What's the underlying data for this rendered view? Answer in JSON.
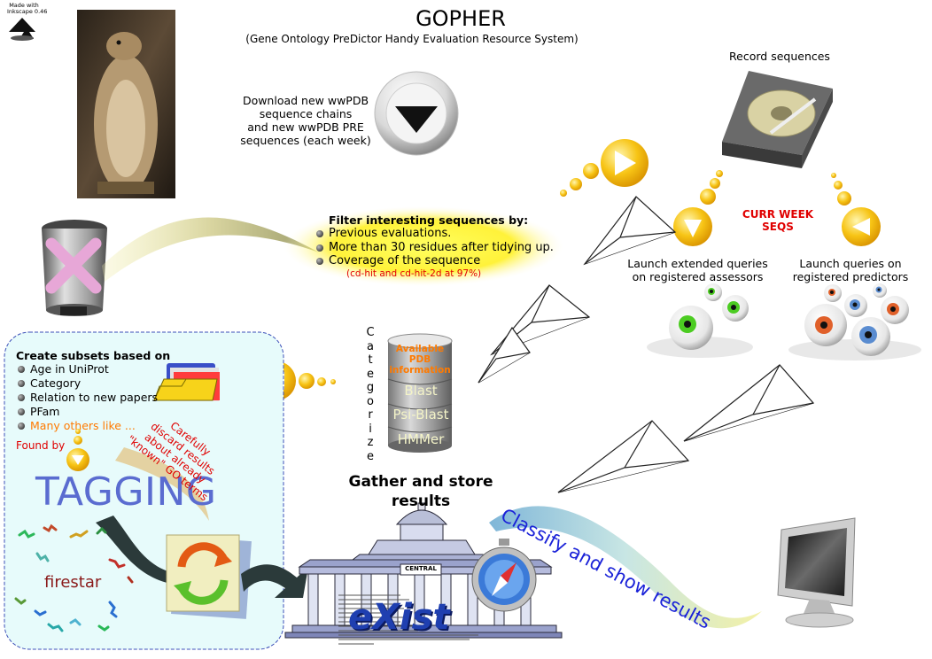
{
  "header": {
    "title": "GOPHER",
    "subtitle": "(Gene Ontology PreDictor Handy Evaluation Resource System)"
  },
  "inkscape_badge": [
    "Made with",
    "Inkscape 0.46"
  ],
  "download": {
    "lines": [
      "Download new wwPDB",
      "sequence chains",
      "and new wwPDB PRE",
      "sequences (each week)"
    ]
  },
  "record_sequences": "Record sequences",
  "curr_week": [
    "CURR WEEK",
    "SEQS"
  ],
  "launch_assessors": [
    "Launch extended queries",
    "on registered assessors"
  ],
  "launch_predictors": [
    "Launch queries on",
    "registered predictors"
  ],
  "filter": {
    "heading": "Filter interesting sequences by:",
    "items": [
      "Previous evaluations.",
      "More than 30 residues after tidying up.",
      "Coverage of the sequence"
    ],
    "note": "(cd-hit and cd-hit-2d at 97%)"
  },
  "categorize": [
    "C",
    "a",
    "t",
    "e",
    "g",
    "o",
    "r",
    "i",
    "z",
    "e"
  ],
  "db": {
    "available": [
      "Available",
      "PDB",
      "information"
    ],
    "tools": [
      "Blast",
      "Psi-Blast",
      "HMMer"
    ]
  },
  "subsets": {
    "heading": "Create subsets based on",
    "items": [
      "Age in UniProt",
      "Category",
      "Relation to new papers",
      "PFam"
    ],
    "more": "Many others like ...",
    "found_by": "Found by",
    "tagging": "TAGGING",
    "firestar": "firestar",
    "discard_note": [
      "Carefully",
      "discard results",
      "about already",
      "\"known\" GO terms"
    ]
  },
  "gather": [
    "Gather and store",
    "results"
  ],
  "building_sign": "CENTRAL",
  "exist_logo": "eXist",
  "classify": "Classify and show results",
  "colors": {
    "title_blue": "#5a6cd0",
    "red": "#e00000",
    "orange": "#ff7a00",
    "classify_blue": "#1a22d8",
    "exist_blue": "#1f3fb0",
    "panel_fill": "#e7fbfb",
    "panel_border": "#3c4fb8",
    "gold": "#f6c213"
  },
  "icons": [
    "inkscape-logo-icon",
    "gopher-photo",
    "download-arrow-icon",
    "hard-disk-icon",
    "trash-can-icon",
    "paper-plane-icon",
    "eyeball-icon",
    "database-cylinder-icon",
    "folder-icon",
    "refresh-icon",
    "museum-building-icon",
    "compass-icon",
    "monitor-icon",
    "arrow-circle-icon"
  ]
}
